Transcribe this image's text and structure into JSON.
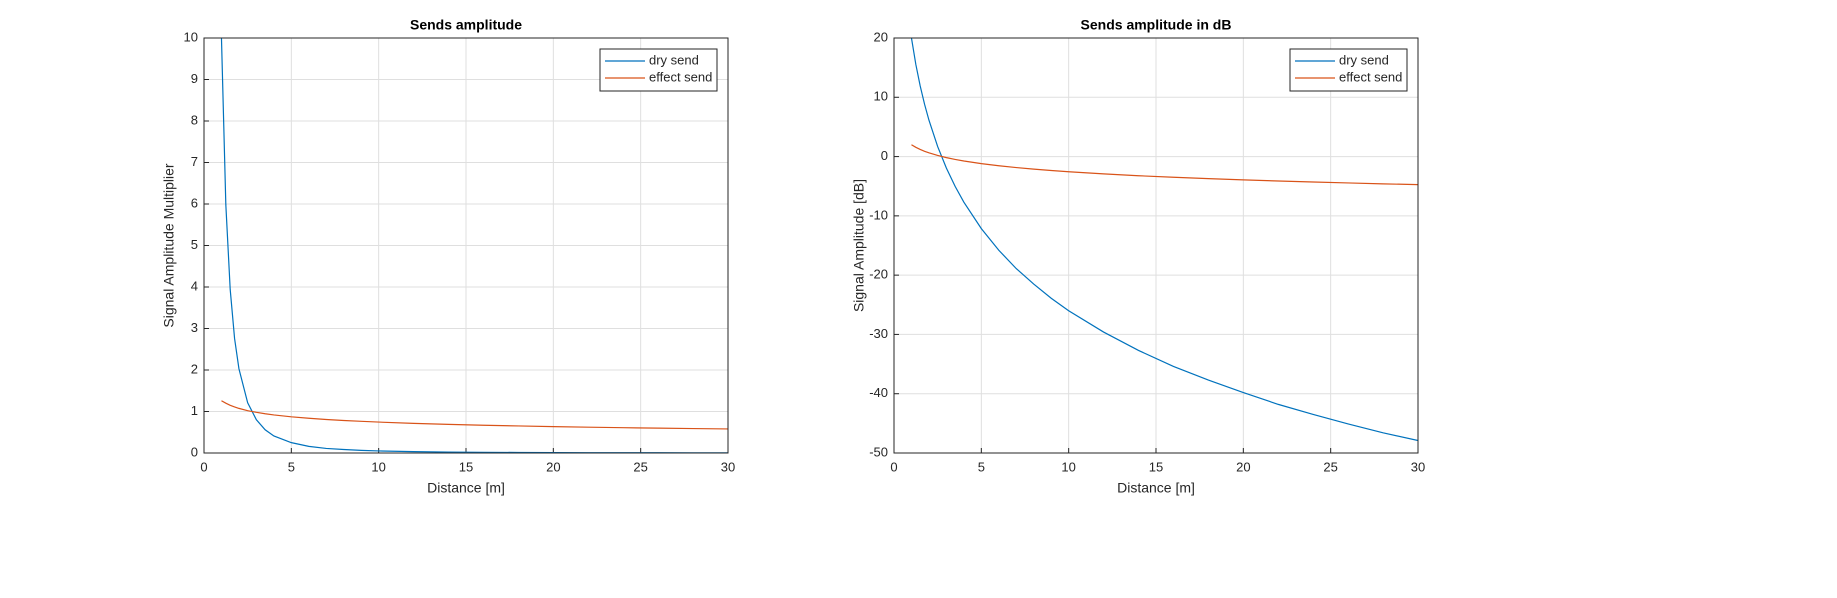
{
  "chart_data": [
    {
      "type": "line",
      "title": "Sends amplitude",
      "x_label": "Distance [m]",
      "y_label": "Signal Amplitude Multiplier",
      "x": [
        1,
        1.25,
        1.5,
        1.75,
        2,
        2.5,
        3,
        3.5,
        4,
        5,
        6,
        7,
        8,
        9,
        10,
        12,
        14,
        16,
        18,
        20,
        22,
        24,
        26,
        28,
        30
      ],
      "series": [
        {
          "name": "dry send",
          "color": "#0072bd",
          "values": [
            10,
            5.98,
            3.94,
            2.76,
            2.03,
            1.21,
            0.8,
            0.56,
            0.41,
            0.25,
            0.16,
            0.11,
            0.084,
            0.064,
            0.05,
            0.033,
            0.023,
            0.017,
            0.013,
            0.01,
            0.0081,
            0.0067,
            0.0056,
            0.0047,
            0.004
          ]
        },
        {
          "name": "effect send",
          "color": "#d95319",
          "values": [
            1.26,
            1.2,
            1.15,
            1.11,
            1.075,
            1.02,
            0.98,
            0.946,
            0.917,
            0.872,
            0.837,
            0.808,
            0.784,
            0.763,
            0.745,
            0.714,
            0.689,
            0.669,
            0.652,
            0.636,
            0.622,
            0.61,
            0.599,
            0.589,
            0.58
          ]
        }
      ],
      "xlim": [
        0,
        30
      ],
      "xticks": [
        0,
        5,
        10,
        15,
        20,
        25,
        30
      ],
      "ylim": [
        0,
        10
      ],
      "yticks": [
        0,
        1,
        2,
        3,
        4,
        5,
        6,
        7,
        8,
        9,
        10
      ],
      "grid": true,
      "legend": "top-right"
    },
    {
      "type": "line",
      "title": "Sends amplitude in dB",
      "x_label": "Distance [m]",
      "y_label": "Signal Amplitude [dB]",
      "x": [
        1,
        1.25,
        1.5,
        1.75,
        2,
        2.5,
        3,
        3.5,
        4,
        5,
        6,
        7,
        8,
        9,
        10,
        12,
        14,
        16,
        18,
        20,
        22,
        24,
        26,
        28,
        30
      ],
      "series": [
        {
          "name": "dry send",
          "color": "#0072bd",
          "values": [
            20,
            15.54,
            11.9,
            8.82,
            6.15,
            1.69,
            -1.95,
            -5.03,
            -7.69,
            -12.15,
            -15.8,
            -18.9,
            -21.5,
            -23.9,
            -26,
            -29.6,
            -32.7,
            -35.4,
            -37.7,
            -39.8,
            -41.8,
            -43.5,
            -45.1,
            -46.6,
            -47.9
          ]
        },
        {
          "name": "effect send",
          "color": "#d95319",
          "values": [
            2,
            1.56,
            1.2,
            0.89,
            0.63,
            0.19,
            -0.18,
            -0.48,
            -0.75,
            -1.19,
            -1.55,
            -1.85,
            -2.12,
            -2.35,
            -2.56,
            -2.92,
            -3.23,
            -3.49,
            -3.72,
            -3.93,
            -4.12,
            -4.29,
            -4.45,
            -4.6,
            -4.73
          ]
        }
      ],
      "xlim": [
        0,
        30
      ],
      "xticks": [
        0,
        5,
        10,
        15,
        20,
        25,
        30
      ],
      "ylim": [
        -50,
        20
      ],
      "yticks": [
        -50,
        -40,
        -30,
        -20,
        -10,
        0,
        10,
        20
      ],
      "grid": true,
      "legend": "top-right"
    }
  ]
}
